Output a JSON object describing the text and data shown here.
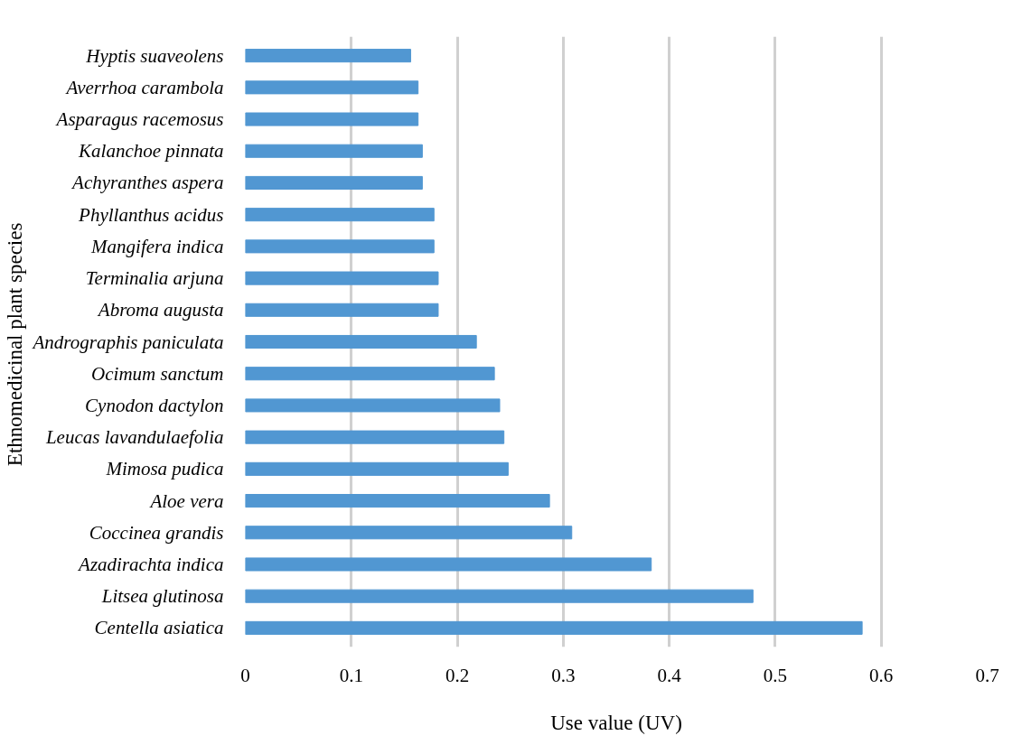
{
  "chart_data": {
    "type": "bar",
    "orientation": "horizontal",
    "xlabel": "Use value (UV)",
    "ylabel": "Ethnomedicinal  plant species",
    "categories": [
      "Hyptis suaveolens",
      "Averrhoa carambola",
      "Asparagus racemosus",
      "Kalanchoe pinnata",
      "Achyranthes aspera",
      "Phyllanthus acidus",
      "Mangifera indica",
      "Terminalia arjuna",
      "Abroma augusta",
      "Andrographis paniculata",
      "Ocimum sanctum",
      "Cynodon dactylon",
      "Leucas lavandulaefolia",
      "Mimosa pudica",
      "Aloe vera",
      "Coccinea grandis",
      "Azadirachta indica",
      "Litsea glutinosa",
      "Centella asiatica"
    ],
    "values": [
      0.156,
      0.163,
      0.163,
      0.167,
      0.167,
      0.178,
      0.178,
      0.182,
      0.182,
      0.218,
      0.235,
      0.24,
      0.244,
      0.248,
      0.287,
      0.308,
      0.383,
      0.479,
      0.582
    ],
    "color": "#5197d2",
    "xlim": [
      0,
      0.7
    ],
    "xticks": [
      0,
      0.1,
      0.2,
      0.3,
      0.4,
      0.5,
      0.6,
      0.7
    ],
    "grid": "x"
  }
}
